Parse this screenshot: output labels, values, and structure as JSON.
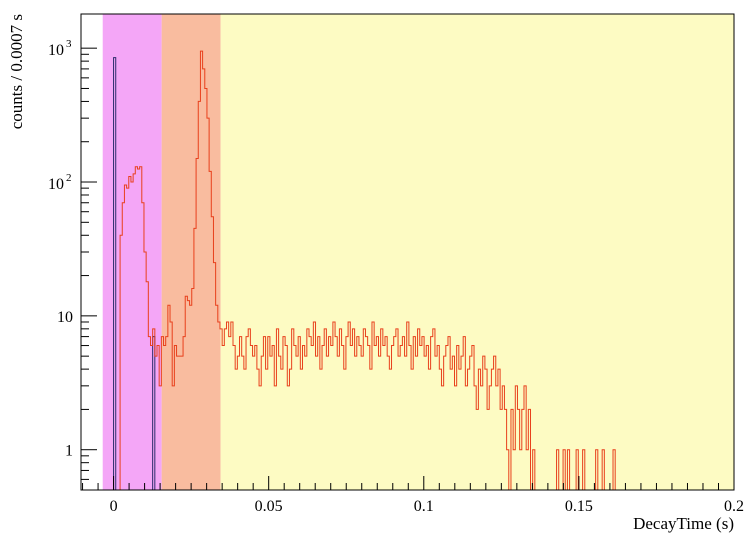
{
  "chart_data": {
    "type": "histogram",
    "xlabel": "DecayTime (s)",
    "ylabel": "counts / 0.0007 s",
    "xlim": [
      -0.0105,
      0.2
    ],
    "ylim": [
      0.5,
      1800
    ],
    "y_scale": "log",
    "x_ticks": [
      {
        "value": 0,
        "label": "0"
      },
      {
        "value": 0.05,
        "label": "0.05"
      },
      {
        "value": 0.1,
        "label": "0.1"
      },
      {
        "value": 0.15,
        "label": "0.15"
      },
      {
        "value": 0.2,
        "label": "0.2"
      }
    ],
    "y_ticks": [
      {
        "value": 1,
        "label": "1"
      },
      {
        "value": 10,
        "label": "10"
      }
    ],
    "y_ticks_pow": [
      {
        "value": 100,
        "base": "10",
        "exp": "2"
      },
      {
        "value": 1000,
        "base": "10",
        "exp": "3"
      }
    ],
    "bin_width": 0.0007,
    "regions": [
      {
        "x0": -0.0035,
        "x1": 0.0155,
        "color": "#f4a6f7"
      },
      {
        "x0": 0.0155,
        "x1": 0.0345,
        "color": "#f9bc9f"
      },
      {
        "x0": 0.0345,
        "x1": 0.2,
        "color": "#fdfbc3"
      }
    ],
    "series": [
      {
        "color": "#2b2b6b",
        "x0": -0.0014,
        "values": [
          0,
          0,
          850,
          0,
          0,
          0,
          0,
          0,
          0,
          0,
          0,
          0,
          0,
          0,
          0,
          0,
          0,
          0,
          0,
          0,
          7,
          0,
          0,
          0,
          0,
          0,
          0,
          0,
          0,
          0,
          0,
          0,
          0,
          0,
          0,
          0,
          0,
          0,
          0,
          0,
          0,
          0,
          0,
          0,
          0,
          0,
          0,
          0,
          0,
          0,
          0,
          0,
          0,
          0,
          0,
          0,
          0,
          0,
          0,
          0,
          0,
          0,
          0,
          0,
          0,
          0,
          0,
          0,
          0,
          0,
          0,
          0,
          0,
          0,
          0,
          0,
          0,
          0,
          0,
          0,
          0,
          0,
          0,
          0,
          0,
          0,
          0,
          0,
          0,
          0,
          0,
          0,
          0,
          0,
          0,
          0,
          0,
          0,
          0,
          0,
          0,
          0,
          0,
          0,
          0,
          0,
          0,
          0,
          0,
          0,
          0,
          0,
          0,
          0,
          0,
          0,
          0,
          0,
          0,
          0,
          0,
          0,
          0,
          0,
          0,
          0,
          0,
          0,
          0,
          0,
          0,
          0,
          0,
          0,
          0,
          0,
          0,
          0,
          0,
          0,
          0,
          0,
          0,
          0,
          0,
          0,
          0,
          0,
          0,
          0,
          0,
          0,
          0,
          0,
          0,
          0,
          0,
          0,
          0,
          0,
          0,
          0,
          0,
          0,
          0,
          0,
          0,
          0,
          0,
          0,
          0,
          0,
          0,
          0,
          0,
          0,
          0,
          0,
          0,
          0,
          0,
          0,
          0,
          0,
          0,
          0,
          0,
          0,
          0,
          0,
          0,
          0,
          0,
          0,
          0,
          0,
          0,
          0,
          0,
          0,
          0,
          0,
          0,
          0,
          0,
          0,
          0,
          0,
          0,
          0,
          0,
          0,
          0,
          0,
          0,
          0,
          0,
          0,
          0,
          0,
          0,
          0,
          0,
          0,
          0,
          0,
          0,
          0,
          0,
          0,
          0,
          0,
          0,
          0,
          0,
          0,
          0,
          0,
          0,
          0,
          0,
          0,
          0,
          0,
          0,
          0,
          0,
          0,
          0,
          0,
          0,
          0,
          0,
          0,
          0,
          0,
          0,
          0,
          0,
          0,
          0,
          0,
          0,
          0,
          0,
          0,
          0,
          0,
          0,
          0,
          0,
          0,
          0,
          0,
          0,
          0,
          0,
          0,
          0,
          0,
          0,
          0,
          0,
          0,
          0,
          0,
          0,
          0,
          0,
          0,
          0,
          0,
          0,
          0,
          0,
          0,
          0,
          0,
          0,
          0,
          0,
          0,
          0,
          0,
          0,
          0,
          0,
          0,
          0,
          0,
          0,
          0,
          0,
          0,
          0,
          0,
          0,
          0,
          0,
          0,
          0,
          0,
          0,
          0,
          0,
          0,
          0,
          0,
          0,
          0,
          0,
          0,
          0,
          0
        ]
      },
      {
        "color": "#e8401c",
        "x0": -0.0014,
        "values": [
          0,
          0,
          0,
          0,
          0,
          40,
          70,
          95,
          90,
          110,
          100,
          115,
          130,
          125,
          130,
          70,
          30,
          18,
          7,
          6,
          8,
          5,
          6,
          3,
          7,
          6,
          7,
          12,
          9,
          3,
          6,
          5,
          5,
          5,
          7,
          14,
          13,
          12,
          16,
          45,
          150,
          400,
          950,
          700,
          500,
          300,
          120,
          55,
          25,
          12,
          9,
          8,
          6,
          8,
          9,
          7,
          9,
          6,
          4,
          5,
          7,
          5,
          4,
          7,
          8,
          6,
          5,
          6,
          4,
          3,
          5,
          7,
          4,
          7,
          5,
          6,
          3,
          8,
          5,
          4,
          7,
          6,
          3,
          4,
          8,
          6,
          5,
          7,
          4,
          6,
          5,
          8,
          7,
          6,
          9,
          5,
          7,
          4,
          6,
          8,
          5,
          7,
          6,
          9,
          7,
          5,
          8,
          6,
          4,
          7,
          9,
          6,
          8,
          5,
          7,
          6,
          5,
          8,
          7,
          6,
          4,
          9,
          6,
          7,
          5,
          8,
          6,
          7,
          5,
          4,
          6,
          7,
          8,
          5,
          6,
          7,
          5,
          9,
          6,
          4,
          7,
          5,
          8,
          6,
          7,
          5,
          6,
          4,
          7,
          8,
          5,
          6,
          4,
          3,
          5,
          6,
          7,
          4,
          5,
          3,
          6,
          4,
          5,
          7,
          3,
          4,
          5,
          6,
          3,
          2,
          4,
          3,
          5,
          4,
          2,
          3,
          4,
          5,
          3,
          4,
          2,
          3,
          2,
          1,
          0,
          2,
          1,
          3,
          2,
          1,
          2,
          3,
          1,
          2,
          0,
          1,
          0,
          0,
          0,
          0,
          0,
          0,
          0,
          0,
          0,
          0,
          1,
          0,
          0,
          1,
          0,
          1,
          0,
          0,
          0,
          1,
          0,
          0,
          1,
          0,
          0,
          0,
          0,
          0,
          1,
          0,
          0,
          1,
          0,
          0,
          0,
          0,
          1,
          0,
          0,
          0,
          0,
          0,
          0,
          0,
          0,
          0,
          0,
          0,
          0,
          0,
          0,
          0,
          0,
          0,
          0,
          0,
          0,
          0,
          0,
          0,
          0,
          0,
          0,
          0,
          0,
          0,
          0,
          0,
          0,
          0,
          0,
          0,
          0,
          0,
          0,
          0,
          0,
          0,
          0,
          0,
          0,
          0,
          0,
          0,
          0,
          0,
          0,
          0,
          0,
          0,
          0,
          0,
          0,
          0,
          0,
          0,
          0,
          0,
          0,
          0,
          0,
          0,
          0,
          0,
          0,
          0,
          0,
          0,
          0,
          0,
          0,
          0,
          0,
          0,
          0,
          0,
          0,
          0,
          0,
          0,
          0,
          0,
          0,
          0,
          0,
          0,
          0,
          0,
          0,
          0,
          0,
          0,
          0,
          0,
          0,
          0,
          0,
          0,
          0,
          0,
          0,
          0,
          0,
          0,
          0,
          0,
          0,
          0,
          0,
          0,
          0,
          0,
          0,
          0,
          0,
          0,
          0,
          0,
          0
        ]
      }
    ]
  }
}
